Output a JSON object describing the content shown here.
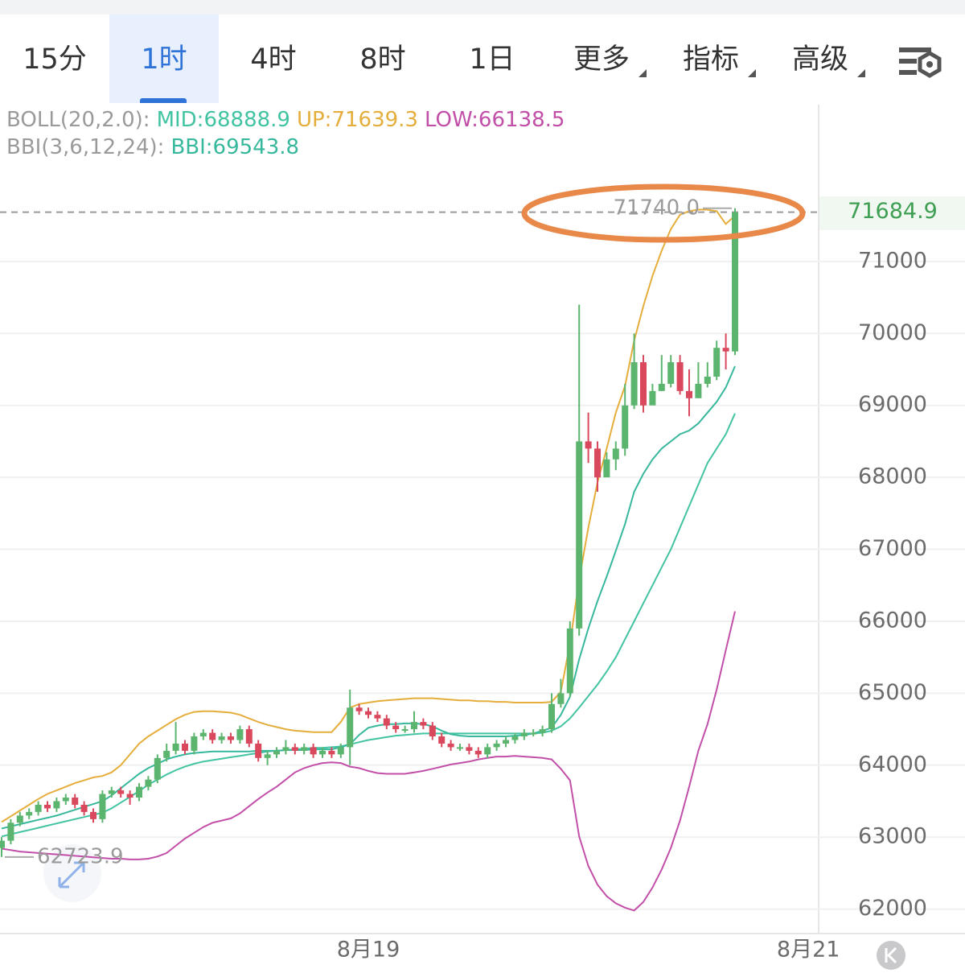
{
  "tabs": [
    "15分",
    "1时",
    "4时",
    "8时",
    "1日",
    "更多",
    "指标",
    "高级"
  ],
  "active_tab": "1时",
  "menu_tabs": [
    "更多",
    "指标",
    "高级"
  ],
  "chart_data": {
    "type": "candlestick",
    "indicator_groups": [
      "BOLL(20,2.0):",
      "BBI(3,6,12,24):"
    ],
    "categories": [
      null,
      null,
      null,
      null,
      null,
      null,
      null,
      null,
      null,
      null,
      null,
      null,
      null,
      null,
      null,
      null,
      null,
      null,
      null,
      null,
      null,
      null,
      null,
      null,
      null,
      null,
      null,
      null,
      null,
      null,
      null,
      null,
      null,
      null,
      null,
      null,
      null,
      null,
      null,
      null,
      "8月19",
      null,
      null,
      null,
      null,
      null,
      null,
      null,
      null,
      null,
      null,
      null,
      null,
      null,
      null,
      null,
      null,
      null,
      null,
      null,
      null,
      null,
      null,
      null,
      null,
      null,
      null,
      null,
      null,
      null,
      null,
      null,
      null,
      null,
      null,
      null,
      null,
      null,
      null,
      null,
      null,
      null,
      null,
      null,
      null,
      null,
      null,
      null,
      "8月21"
    ],
    "open": [
      62850,
      62950,
      63200,
      63300,
      63350,
      63450,
      63400,
      63500,
      63550,
      63450,
      63350,
      63250,
      63600,
      63650,
      63600,
      63550,
      63700,
      63800,
      64100,
      64200,
      64300,
      64200,
      64400,
      64450,
      64350,
      64400,
      64350,
      64500,
      64300,
      64100,
      64150,
      64200,
      64250,
      64200,
      64250,
      64150,
      64200,
      64150,
      64250,
      64800,
      64750,
      64700,
      64650,
      64550,
      64500,
      64500,
      64600,
      64550,
      64400,
      64300,
      64250,
      64250,
      64200,
      64150,
      64250,
      64300,
      64350,
      64400,
      64450,
      64450,
      64500,
      64850,
      65000,
      65900,
      68500,
      68400,
      68000,
      68250,
      68400,
      69000,
      69600,
      69000,
      69200,
      69300,
      69600,
      69200,
      69100,
      69300,
      69400,
      69800,
      69750,
      null,
      null,
      null,
      null,
      null,
      null,
      null,
      null
    ],
    "high": [
      63000,
      63250,
      63350,
      63400,
      63500,
      63500,
      63550,
      63600,
      63600,
      63500,
      63400,
      63650,
      63700,
      63700,
      63650,
      63750,
      63850,
      64150,
      64300,
      64600,
      64350,
      64450,
      64500,
      64500,
      64450,
      64450,
      64550,
      64550,
      64350,
      64200,
      64250,
      64350,
      64300,
      64300,
      64300,
      64250,
      64250,
      64300,
      65050,
      64850,
      64800,
      64750,
      64700,
      64600,
      64550,
      64750,
      64650,
      64600,
      64450,
      64350,
      64300,
      64300,
      64250,
      64300,
      64350,
      64400,
      64450,
      64500,
      64500,
      64550,
      65000,
      65200,
      66000,
      70400,
      68900,
      68500,
      68350,
      68500,
      69300,
      70000,
      69700,
      69300,
      69700,
      69700,
      69700,
      69500,
      69600,
      69600,
      69900,
      70000,
      71740,
      null,
      null,
      null,
      null,
      null,
      null,
      null,
      null
    ],
    "low": [
      62723.9,
      62900,
      63150,
      63250,
      63300,
      63350,
      63350,
      63450,
      63400,
      63300,
      63200,
      63200,
      63550,
      63550,
      63450,
      63500,
      63650,
      63750,
      64050,
      64150,
      64150,
      64150,
      64350,
      64300,
      64300,
      64300,
      64300,
      64250,
      64050,
      64000,
      64100,
      64150,
      64150,
      64150,
      64100,
      64100,
      64100,
      64100,
      64000,
      64700,
      64650,
      64600,
      64500,
      64450,
      64450,
      64450,
      64500,
      64350,
      64250,
      64200,
      64200,
      64150,
      64100,
      64100,
      64200,
      64250,
      64300,
      64350,
      64400,
      64400,
      64450,
      64800,
      64950,
      65800,
      68200,
      67800,
      68100,
      68100,
      68300,
      68950,
      68900,
      69100,
      69200,
      69250,
      69150,
      68850,
      69100,
      69250,
      69350,
      69500,
      69700,
      null,
      null,
      null,
      null,
      null,
      null,
      null,
      null
    ],
    "close": [
      62950,
      63200,
      63300,
      63350,
      63450,
      63400,
      63500,
      63550,
      63450,
      63350,
      63250,
      63600,
      63650,
      63600,
      63550,
      63700,
      63800,
      64100,
      64200,
      64300,
      64200,
      64400,
      64450,
      64350,
      64400,
      64350,
      64500,
      64300,
      64100,
      64150,
      64200,
      64250,
      64200,
      64250,
      64150,
      64200,
      64150,
      64250,
      64800,
      64750,
      64700,
      64650,
      64550,
      64500,
      64500,
      64600,
      64550,
      64400,
      64300,
      64250,
      64250,
      64200,
      64150,
      64250,
      64300,
      64350,
      64400,
      64450,
      64450,
      64500,
      64850,
      65000,
      65900,
      68500,
      68400,
      68000,
      68250,
      68400,
      69000,
      69600,
      69000,
      69200,
      69300,
      69600,
      69200,
      69100,
      69300,
      69400,
      69800,
      69750,
      71684.9,
      null,
      null,
      null,
      null,
      null,
      null,
      null,
      null
    ],
    "up_color": "#5cb56e",
    "down_color": "#d9485c",
    "series": [
      {
        "name": "MID:68888.9",
        "group": 0,
        "color": "#42c3a2",
        "values": [
          63010,
          63040,
          63070,
          63100,
          63130,
          63160,
          63190,
          63220,
          63250,
          63280,
          63310,
          63340,
          63400,
          63480,
          63560,
          63640,
          63730,
          63800,
          63870,
          63930,
          63980,
          64020,
          64050,
          64070,
          64090,
          64110,
          64130,
          64150,
          64170,
          64190,
          64200,
          64210,
          64220,
          64230,
          64240,
          64240,
          64250,
          64260,
          64290,
          64320,
          64350,
          64370,
          64390,
          64410,
          64420,
          64430,
          64440,
          64440,
          64440,
          64440,
          64440,
          64440,
          64440,
          64440,
          64440,
          64440,
          64440,
          64440,
          64440,
          64450,
          64480,
          64540,
          64650,
          64800,
          64960,
          65120,
          65300,
          65500,
          65750,
          66000,
          66250,
          66500,
          66750,
          67000,
          67300,
          67600,
          67900,
          68200,
          68400,
          68600,
          68888.9,
          null,
          null,
          null,
          null,
          null,
          null,
          null,
          null
        ]
      },
      {
        "name": "UP:71639.3",
        "group": 0,
        "color": "#e5ae3c",
        "values": [
          63210,
          63290,
          63370,
          63450,
          63530,
          63600,
          63650,
          63700,
          63750,
          63790,
          63830,
          63850,
          63900,
          64000,
          64150,
          64300,
          64400,
          64480,
          64560,
          64640,
          64700,
          64740,
          64750,
          64750,
          64740,
          64730,
          64700,
          64650,
          64600,
          64560,
          64530,
          64500,
          64480,
          64470,
          64460,
          64460,
          64460,
          64600,
          64800,
          64850,
          64870,
          64890,
          64900,
          64910,
          64920,
          64930,
          64930,
          64930,
          64920,
          64910,
          64900,
          64900,
          64890,
          64890,
          64880,
          64880,
          64870,
          64870,
          64870,
          64870,
          64880,
          65020,
          65690,
          66580,
          67300,
          67930,
          68400,
          68900,
          69270,
          69900,
          70380,
          70800,
          71150,
          71450,
          71650,
          71700,
          71720,
          71720,
          71700,
          71520,
          71639.3,
          null,
          null,
          null,
          null,
          null,
          null,
          null,
          null
        ]
      },
      {
        "name": "LOW:66138.5",
        "group": 0,
        "color": "#c24fa8",
        "values": [
          62840,
          62820,
          62800,
          62790,
          62780,
          62770,
          62760,
          62750,
          62740,
          62730,
          62720,
          62710,
          62700,
          62700,
          62690,
          62690,
          62700,
          62730,
          62780,
          62880,
          62980,
          63060,
          63140,
          63200,
          63230,
          63260,
          63330,
          63430,
          63530,
          63620,
          63700,
          63800,
          63900,
          63960,
          64000,
          64030,
          64040,
          64030,
          63980,
          63960,
          63920,
          63890,
          63880,
          63880,
          63880,
          63900,
          63920,
          63950,
          63980,
          64010,
          64030,
          64050,
          64080,
          64100,
          64120,
          64120,
          64130,
          64120,
          64110,
          64100,
          64080,
          63950,
          63790,
          63010,
          62600,
          62340,
          62180,
          62080,
          62020,
          61980,
          62100,
          62300,
          62550,
          62850,
          63230,
          63700,
          64200,
          64570,
          65050,
          65600,
          66138.5,
          null,
          null,
          null,
          null,
          null,
          null,
          null,
          null
        ]
      },
      {
        "name": "BBI:69543.8",
        "group": 1,
        "color": "#37b89c",
        "values": [
          63120,
          63150,
          63180,
          63210,
          63240,
          63270,
          63300,
          63340,
          63380,
          63420,
          63460,
          63500,
          63580,
          63680,
          63780,
          63880,
          63960,
          64020,
          64080,
          64120,
          64150,
          64170,
          64180,
          64190,
          64190,
          64190,
          64190,
          64190,
          64200,
          64200,
          64200,
          64210,
          64210,
          64210,
          64220,
          64220,
          64220,
          64250,
          64290,
          64420,
          64520,
          64550,
          64570,
          64570,
          64580,
          64580,
          64570,
          64540,
          64480,
          64430,
          64410,
          64400,
          64400,
          64400,
          64400,
          64400,
          64410,
          64420,
          64440,
          64480,
          64520,
          64700,
          64950,
          65470,
          65900,
          66280,
          66620,
          66980,
          67350,
          67800,
          68050,
          68250,
          68400,
          68500,
          68600,
          68650,
          68750,
          68900,
          69050,
          69250,
          69543.8,
          null,
          null,
          null,
          null,
          null,
          null,
          null,
          null
        ]
      }
    ],
    "group_color": "#9a9a9a",
    "ylim": [
      61660,
      73180
    ],
    "yticks": [
      62000,
      63000,
      64000,
      65000,
      66000,
      67000,
      68000,
      69000,
      70000,
      71000
    ],
    "grid": true,
    "high_marker": {
      "value": 71740,
      "label": "71740.0"
    },
    "low_marker": {
      "value": 62723.9,
      "label": "62723.9"
    },
    "current_price": {
      "value": 71684.9,
      "label": "71684.9"
    },
    "current_price_color": "#3e9e52"
  }
}
